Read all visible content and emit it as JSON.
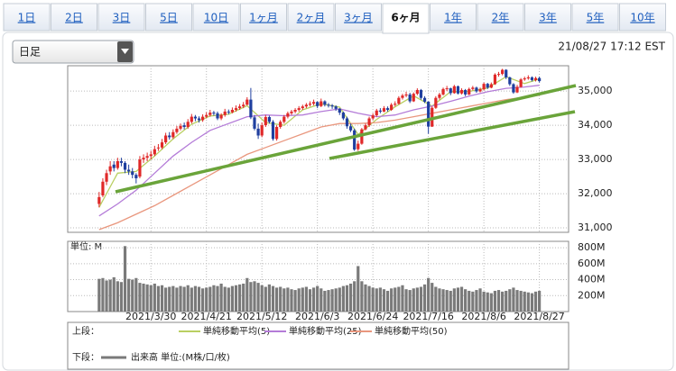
{
  "tabs": [
    "1日",
    "2日",
    "3日",
    "5日",
    "10日",
    "1ヶ月",
    "2ヶ月",
    "3ヶ月",
    "6ヶ月",
    "1年",
    "2年",
    "3年",
    "5年",
    "10年"
  ],
  "active_tab": 8,
  "period_select": "日足",
  "timestamp": "21/08/27 17:12 EST",
  "chart_data": [
    {
      "type": "candlestick",
      "legend_label": "上段：",
      "up_color": "#e02828",
      "down_color": "#1f3f9f",
      "grid": true,
      "xlim": [
        -8.5,
        126.9
      ],
      "xticks": [
        14,
        29,
        44,
        59,
        74,
        89,
        104,
        119
      ],
      "ylim": [
        30870,
        35740
      ],
      "yticks": [
        {
          "value": 31000,
          "label": "31,000"
        },
        {
          "value": 32000,
          "label": "32,000"
        },
        {
          "value": 33000,
          "label": "33,000"
        },
        {
          "value": 34000,
          "label": "34,000"
        },
        {
          "value": 35000,
          "label": "35,000"
        }
      ],
      "candles": [
        [
          31700,
          32050,
          31600,
          31900
        ],
        [
          31950,
          32450,
          31900,
          32350
        ],
        [
          32350,
          32700,
          32250,
          32600
        ],
        [
          32650,
          32950,
          32550,
          32800
        ],
        [
          32850,
          32950,
          32650,
          32750
        ],
        [
          32750,
          33050,
          32700,
          32950
        ],
        [
          32950,
          33050,
          32800,
          32900
        ],
        [
          32900,
          32950,
          32600,
          32700
        ],
        [
          32700,
          32850,
          32550,
          32650
        ],
        [
          32650,
          32750,
          32450,
          32550
        ],
        [
          32550,
          32600,
          32300,
          32450
        ],
        [
          32500,
          33100,
          32450,
          33000
        ],
        [
          33000,
          33150,
          32900,
          33050
        ],
        [
          33050,
          33200,
          32950,
          33100
        ],
        [
          33100,
          33250,
          33000,
          33150
        ],
        [
          33150,
          33400,
          33100,
          33300
        ],
        [
          33350,
          33450,
          33250,
          33350
        ],
        [
          33350,
          33600,
          33300,
          33500
        ],
        [
          33500,
          33780,
          33450,
          33700
        ],
        [
          33700,
          33800,
          33580,
          33650
        ],
        [
          33650,
          33880,
          33600,
          33800
        ],
        [
          33800,
          33980,
          33750,
          33900
        ],
        [
          33900,
          34050,
          33850,
          33980
        ],
        [
          34000,
          34080,
          33880,
          33950
        ],
        [
          33950,
          34180,
          33900,
          34100
        ],
        [
          34100,
          34330,
          34050,
          34250
        ],
        [
          34250,
          34300,
          34120,
          34200
        ],
        [
          34200,
          34260,
          34080,
          34150
        ],
        [
          34150,
          34320,
          34100,
          34250
        ],
        [
          34250,
          34380,
          34200,
          34300
        ],
        [
          34300,
          34450,
          34250,
          34370
        ],
        [
          34370,
          34420,
          34280,
          34350
        ],
        [
          34350,
          34400,
          34150,
          34200
        ],
        [
          34200,
          34350,
          34150,
          34300
        ],
        [
          34300,
          34480,
          34250,
          34400
        ],
        [
          34400,
          34460,
          34320,
          34380
        ],
        [
          34380,
          34520,
          34350,
          34450
        ],
        [
          34450,
          34580,
          34400,
          34500
        ],
        [
          34500,
          34620,
          34450,
          34550
        ],
        [
          34550,
          34680,
          34500,
          34600
        ],
        [
          34600,
          34820,
          34580,
          34750
        ],
        [
          34750,
          35090,
          34180,
          34230
        ],
        [
          34230,
          34300,
          33850,
          33900
        ],
        [
          33900,
          34050,
          33600,
          33700
        ],
        [
          33700,
          34080,
          33650,
          34000
        ],
        [
          34000,
          34300,
          33950,
          34240
        ],
        [
          34240,
          34280,
          34050,
          34100
        ],
        [
          34100,
          34150,
          33550,
          33600
        ],
        [
          33600,
          34000,
          33550,
          33950
        ],
        [
          33950,
          34150,
          33900,
          34100
        ],
        [
          34100,
          34300,
          34050,
          34250
        ],
        [
          34250,
          34400,
          34200,
          34350
        ],
        [
          34350,
          34450,
          34300,
          34400
        ],
        [
          34400,
          34500,
          34350,
          34450
        ],
        [
          34450,
          34560,
          34400,
          34500
        ],
        [
          34500,
          34600,
          34450,
          34550
        ],
        [
          34550,
          34650,
          34500,
          34600
        ],
        [
          34600,
          34700,
          34550,
          34630
        ],
        [
          34630,
          34750,
          34580,
          34680
        ],
        [
          34680,
          34700,
          34500,
          34560
        ],
        [
          34560,
          34780,
          34530,
          34700
        ],
        [
          34700,
          34730,
          34550,
          34600
        ],
        [
          34600,
          34650,
          34520,
          34580
        ],
        [
          34580,
          34620,
          34480,
          34550
        ],
        [
          34550,
          34580,
          34420,
          34480
        ],
        [
          34480,
          34500,
          34300,
          34370
        ],
        [
          34370,
          34400,
          34150,
          34200
        ],
        [
          34200,
          34250,
          33900,
          33970
        ],
        [
          33970,
          34050,
          33800,
          33850
        ],
        [
          33850,
          33900,
          33250,
          33290
        ],
        [
          33300,
          33550,
          33250,
          33460
        ],
        [
          33460,
          33920,
          33430,
          33880
        ],
        [
          33880,
          34050,
          33850,
          34000
        ],
        [
          34000,
          34250,
          33950,
          34200
        ],
        [
          34200,
          34350,
          34150,
          34290
        ],
        [
          34290,
          34480,
          34250,
          34430
        ],
        [
          34430,
          34500,
          34350,
          34400
        ],
        [
          34400,
          34560,
          34380,
          34500
        ],
        [
          34500,
          34550,
          34400,
          34450
        ],
        [
          34450,
          34650,
          34420,
          34600
        ],
        [
          34600,
          34700,
          34550,
          34630
        ],
        [
          34630,
          34850,
          34600,
          34800
        ],
        [
          34800,
          34920,
          34750,
          34870
        ],
        [
          34870,
          34980,
          34820,
          34900
        ],
        [
          34900,
          34950,
          34650,
          34700
        ],
        [
          34700,
          34960,
          34680,
          34920
        ],
        [
          34920,
          35080,
          34880,
          35030
        ],
        [
          35030,
          35060,
          34750,
          34800
        ],
        [
          34800,
          34850,
          34650,
          34690
        ],
        [
          34690,
          34700,
          33750,
          33960
        ],
        [
          33960,
          34550,
          33950,
          34510
        ],
        [
          34510,
          34850,
          34480,
          34800
        ],
        [
          34800,
          34950,
          34750,
          34900
        ],
        [
          34900,
          35100,
          34870,
          35060
        ],
        [
          35060,
          35150,
          35000,
          35080
        ],
        [
          35080,
          35100,
          34880,
          34940
        ],
        [
          34940,
          35180,
          34920,
          35140
        ],
        [
          35140,
          35160,
          34900,
          34930
        ],
        [
          34930,
          35080,
          34900,
          35030
        ],
        [
          35030,
          35060,
          34850,
          34900
        ],
        [
          34900,
          35100,
          34880,
          35060
        ],
        [
          35060,
          35150,
          35020,
          35100
        ],
        [
          35100,
          35130,
          34950,
          34990
        ],
        [
          34990,
          35100,
          34960,
          35050
        ],
        [
          35050,
          35250,
          35020,
          35210
        ],
        [
          35210,
          35240,
          35060,
          35100
        ],
        [
          35100,
          35250,
          35080,
          35200
        ],
        [
          35200,
          35520,
          35180,
          35480
        ],
        [
          35480,
          35560,
          35420,
          35500
        ],
        [
          35500,
          35650,
          35460,
          35620
        ],
        [
          35620,
          35640,
          35350,
          35400
        ],
        [
          35400,
          35420,
          35150,
          35200
        ],
        [
          35200,
          35230,
          34920,
          34960
        ],
        [
          34960,
          35180,
          34940,
          35120
        ],
        [
          35120,
          35380,
          35100,
          35340
        ],
        [
          35340,
          35420,
          35300,
          35370
        ],
        [
          35370,
          35460,
          35330,
          35400
        ],
        [
          35400,
          35430,
          35280,
          35320
        ],
        [
          35320,
          35420,
          35280,
          35380
        ],
        [
          35380,
          35420,
          35250,
          35290
        ]
      ],
      "series": [
        {
          "name": "単純移動平均(5)",
          "color": "#b9cf62",
          "x": [
            0,
            5,
            10,
            15,
            20,
            25,
            30,
            35,
            40,
            45,
            50,
            55,
            60,
            65,
            70,
            75,
            80,
            85,
            90,
            95,
            100,
            105,
            110,
            115,
            119
          ],
          "values": [
            31600,
            32600,
            32650,
            33100,
            33600,
            34030,
            34270,
            34320,
            34570,
            34080,
            34000,
            34450,
            34630,
            34530,
            33730,
            34170,
            34540,
            34860,
            34560,
            34980,
            34990,
            35090,
            35420,
            35220,
            35350
          ]
        },
        {
          "name": "単純移動平均(25)",
          "color": "#b47cd8",
          "x": [
            0,
            5,
            10,
            15,
            20,
            25,
            30,
            35,
            40,
            45,
            50,
            55,
            60,
            65,
            70,
            75,
            80,
            85,
            90,
            95,
            100,
            105,
            110,
            115,
            119
          ],
          "values": [
            31350,
            31700,
            32100,
            32600,
            33100,
            33500,
            33850,
            34050,
            34250,
            34300,
            34280,
            34300,
            34400,
            34480,
            34350,
            34250,
            34300,
            34450,
            34560,
            34700,
            34850,
            34980,
            35080,
            35120,
            35170
          ]
        },
        {
          "name": "単純移動平均(50)",
          "color": "#e9977e",
          "x": [
            0,
            5,
            10,
            15,
            20,
            25,
            30,
            35,
            40,
            45,
            50,
            55,
            60,
            65,
            70,
            75,
            80,
            85,
            90,
            95,
            100,
            105,
            110,
            115,
            119
          ],
          "values": [
            30950,
            31150,
            31400,
            31650,
            31950,
            32250,
            32550,
            32850,
            33150,
            33350,
            33550,
            33750,
            33950,
            34050,
            34050,
            34080,
            34150,
            34250,
            34350,
            34450,
            34550,
            34650,
            34750,
            34820,
            34880
          ]
        }
      ]
    },
    {
      "type": "bar",
      "unit_label": "単位: M",
      "legend_label": "下段：",
      "grid": true,
      "xlim": [
        -8.5,
        126.9
      ],
      "categories": [
        null,
        null,
        null,
        null,
        null,
        null,
        null,
        null,
        null,
        null,
        null,
        null,
        null,
        null,
        "2021/3/30",
        null,
        null,
        null,
        null,
        null,
        null,
        null,
        null,
        null,
        null,
        null,
        null,
        null,
        null,
        "2021/4/21",
        null,
        null,
        null,
        null,
        null,
        null,
        null,
        null,
        null,
        null,
        null,
        null,
        null,
        null,
        "2021/5/12",
        null,
        null,
        null,
        null,
        null,
        null,
        null,
        null,
        null,
        null,
        null,
        null,
        null,
        null,
        "2021/6/3",
        null,
        null,
        null,
        null,
        null,
        null,
        null,
        null,
        null,
        null,
        null,
        null,
        null,
        null,
        "2021/6/24",
        null,
        null,
        null,
        null,
        null,
        null,
        null,
        null,
        null,
        null,
        null,
        null,
        null,
        null,
        "2021/7/16",
        null,
        null,
        null,
        null,
        null,
        null,
        null,
        null,
        null,
        null,
        null,
        null,
        null,
        null,
        "2021/8/6",
        null,
        null,
        null,
        null,
        null,
        null,
        null,
        null,
        null,
        null,
        null,
        null,
        null,
        null,
        "2021/8/27"
      ],
      "ylim": [
        0,
        880
      ],
      "yticks": [
        {
          "value": 200,
          "label": "200M"
        },
        {
          "value": 400,
          "label": "400M"
        },
        {
          "value": 600,
          "label": "600M"
        },
        {
          "value": 800,
          "label": "800M"
        }
      ],
      "series": [
        {
          "name": "出来高 単位:(M株/口/枚)",
          "color": "#7a7a7a",
          "values": [
            410,
            420,
            390,
            400,
            430,
            380,
            370,
            820,
            410,
            400,
            420,
            360,
            350,
            340,
            330,
            350,
            320,
            330,
            300,
            310,
            320,
            300,
            320,
            310,
            330,
            300,
            320,
            310,
            290,
            300,
            310,
            330,
            320,
            350,
            310,
            300,
            320,
            330,
            340,
            350,
            420,
            370,
            380,
            360,
            330,
            310,
            340,
            320,
            300,
            310,
            290,
            300,
            280,
            270,
            290,
            300,
            310,
            280,
            300,
            320,
            290,
            260,
            270,
            280,
            290,
            300,
            320,
            330,
            350,
            380,
            570,
            380,
            340,
            320,
            300,
            290,
            300,
            280,
            260,
            290,
            300,
            310,
            330,
            280,
            270,
            290,
            300,
            310,
            340,
            420,
            360,
            310,
            290,
            280,
            270,
            260,
            290,
            300,
            310,
            280,
            260,
            250,
            270,
            290,
            250,
            240,
            230,
            260,
            270,
            250,
            260,
            280,
            300,
            270,
            260,
            250,
            240,
            230,
            250,
            260
          ]
        }
      ]
    }
  ]
}
